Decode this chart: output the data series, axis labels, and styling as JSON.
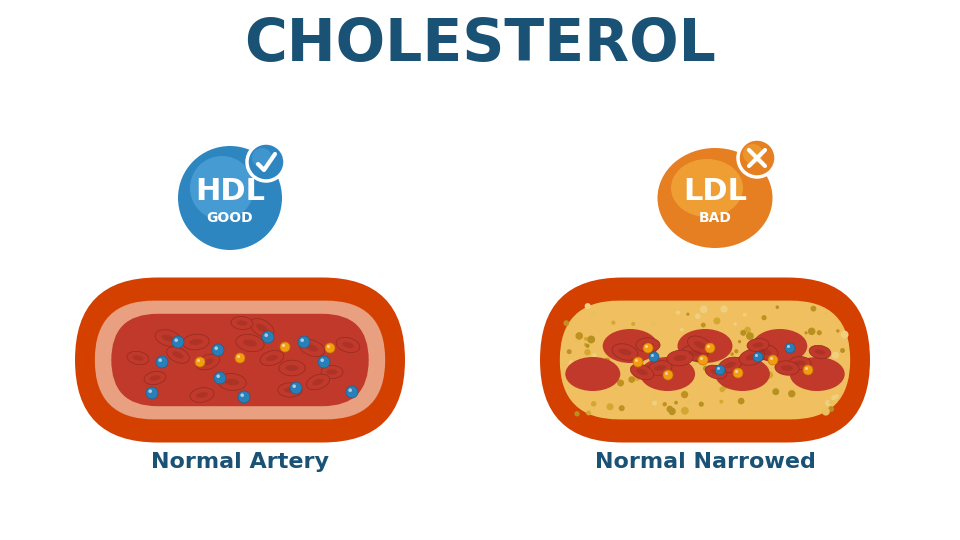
{
  "title": "CHOLESTEROL",
  "title_color": "#1a5276",
  "title_fontsize": 42,
  "bg_color": "#ffffff",
  "hdl_label": "HDL",
  "hdl_sub": "GOOD",
  "hdl_color_main": "#2e86c1",
  "hdl_color_light": "#5dade2",
  "ldl_label": "LDL",
  "ldl_sub": "BAD",
  "ldl_color_main": "#e67e22",
  "ldl_color_light": "#f5b942",
  "artery_label": "Normal Artery",
  "narrowed_label": "Normal Narrowed",
  "label_color": "#1a5276",
  "label_fontsize": 16,
  "red_cell_color": "#c0392b",
  "red_cell_dark": "#922b21",
  "blue_dot_color": "#2980b9",
  "yellow_dot_color": "#f39c12",
  "artery_outer": "#d44000",
  "artery_inner": "#e8a080",
  "artery_lumen": "#c0392b",
  "plaque_color": "#f0c060",
  "plaque_texture": "#d4a040"
}
